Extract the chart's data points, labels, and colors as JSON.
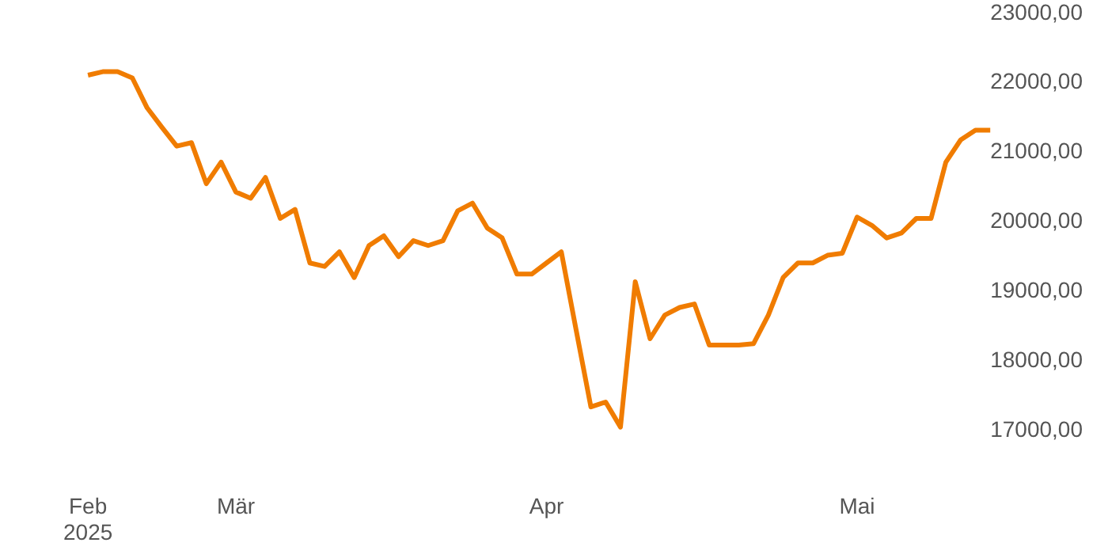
{
  "chart_data": {
    "type": "line",
    "categories": [
      "Feb\n2025",
      null,
      null,
      null,
      null,
      null,
      null,
      null,
      null,
      null,
      "Mär",
      null,
      null,
      null,
      null,
      null,
      null,
      null,
      null,
      null,
      null,
      null,
      null,
      null,
      null,
      null,
      null,
      null,
      null,
      null,
      null,
      "Apr",
      null,
      null,
      null,
      null,
      null,
      null,
      null,
      null,
      null,
      null,
      null,
      null,
      null,
      null,
      null,
      null,
      null,
      null,
      null,
      null,
      "Mai",
      null,
      null,
      null,
      null,
      null,
      null,
      null,
      null,
      null
    ],
    "series": [
      {
        "color": "#f07c00",
        "values": [
          22110,
          22160,
          22160,
          22070,
          21640,
          21360,
          21090,
          21140,
          20550,
          20860,
          20430,
          20340,
          20640,
          20050,
          20180,
          19410,
          19360,
          19570,
          19200,
          19660,
          19800,
          19500,
          19730,
          19660,
          19730,
          20160,
          20270,
          19910,
          19770,
          19250,
          19250,
          19410,
          19570,
          18450,
          17340,
          17410,
          17050,
          19140,
          18320,
          18660,
          18770,
          18820,
          18230,
          18230,
          18230,
          18250,
          18660,
          19200,
          19410,
          19410,
          19520,
          19550,
          20070,
          19950,
          19770,
          19840,
          20050,
          20050,
          20860,
          21180,
          21320,
          21320
        ]
      }
    ],
    "ylim": [
      17000,
      23000
    ],
    "yticks": [
      {
        "value": 17000,
        "label": "17000,00"
      },
      {
        "value": 18000,
        "label": "18000,00"
      },
      {
        "value": 19000,
        "label": "19000,00"
      },
      {
        "value": 20000,
        "label": "20000,00"
      },
      {
        "value": 21000,
        "label": "21000,00"
      },
      {
        "value": 22000,
        "label": "22000,00"
      },
      {
        "value": 23000,
        "label": "23000,00"
      }
    ],
    "grid": false,
    "legend": false,
    "marker": "none",
    "line_style": "solid"
  }
}
